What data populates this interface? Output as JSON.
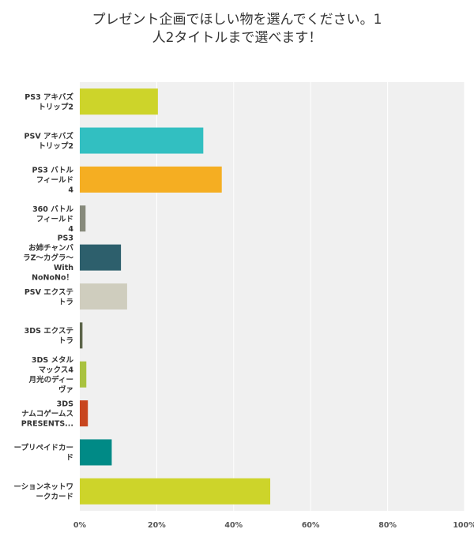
{
  "chart_data": {
    "type": "bar",
    "orientation": "horizontal",
    "title": [
      "プレゼント企画でほしい物を選んでください。1",
      "人2タイトルまで選べます！"
    ],
    "categories": [
      [
        "PS3 アキバズ",
        "トリップ2"
      ],
      [
        "PSV アキバズ",
        "トリップ2"
      ],
      [
        "PS3 バトル",
        "フィールド",
        "4"
      ],
      [
        "360 バトル",
        "フィールド",
        "4"
      ],
      [
        "PS3",
        "お姉チャンバ",
        "ラZ〜カグラ〜",
        "With",
        "NoNoNo！"
      ],
      [
        "PSV エクステ",
        "トラ"
      ],
      [
        "3DS エクステ",
        "トラ"
      ],
      [
        "3DS メタル",
        "マックス4",
        "月光のディー",
        "ヴァ"
      ],
      [
        "3DS",
        "ナムコゲームス",
        "PRESENTS..."
      ],
      [
        "ープリペイドカー",
        "ド"
      ],
      [
        "ーションネットワ",
        "ークカード"
      ]
    ],
    "values": [
      20.3,
      32.1,
      36.9,
      1.5,
      10.7,
      12.3,
      0.7,
      1.7,
      2.1,
      8.3,
      49.5
    ],
    "colors": [
      "#cdd42a",
      "#32bfc1",
      "#f5ae22",
      "#878a7c",
      "#2d5f6c",
      "#cfcdbe",
      "#5c6449",
      "#a9c23f",
      "#c8451e",
      "#008a86",
      "#cdd42a"
    ],
    "xlim": [
      0,
      100
    ],
    "xticks": [
      0,
      20,
      40,
      60,
      80,
      100
    ],
    "tick_suffix": "%",
    "grid": true
  }
}
